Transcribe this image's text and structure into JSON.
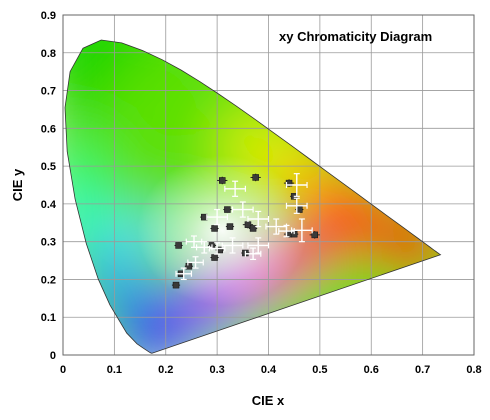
{
  "chart_data": {
    "type": "scatter",
    "title": "xy Chromaticity Diagram",
    "xlabel": "CIE x",
    "ylabel": "CIE y",
    "xlim": [
      0,
      0.8
    ],
    "ylim": [
      0,
      0.9
    ],
    "xticks": [
      "0",
      "0.1",
      "0.2",
      "0.3",
      "0.4",
      "0.5",
      "0.6",
      "0.7",
      "0.8"
    ],
    "yticks": [
      "0",
      "0.1",
      "0.2",
      "0.3",
      "0.4",
      "0.5",
      "0.6",
      "0.7",
      "0.8",
      "0.9"
    ],
    "grid": true,
    "background": "CIE 1931 spectral locus gamut (colored)",
    "spectral_locus": [
      [
        0.1741,
        0.005
      ],
      [
        0.1738,
        0.0049
      ],
      [
        0.1733,
        0.0048
      ],
      [
        0.1726,
        0.0048
      ],
      [
        0.1714,
        0.0051
      ],
      [
        0.1689,
        0.0069
      ],
      [
        0.1644,
        0.0109
      ],
      [
        0.1566,
        0.0177
      ],
      [
        0.144,
        0.0297
      ],
      [
        0.1241,
        0.0578
      ],
      [
        0.0913,
        0.1327
      ],
      [
        0.0687,
        0.2007
      ],
      [
        0.0454,
        0.295
      ],
      [
        0.0235,
        0.4127
      ],
      [
        0.0082,
        0.5384
      ],
      [
        0.0039,
        0.6548
      ],
      [
        0.0139,
        0.7502
      ],
      [
        0.0389,
        0.812
      ],
      [
        0.0743,
        0.8338
      ],
      [
        0.1142,
        0.8262
      ],
      [
        0.1547,
        0.8059
      ],
      [
        0.1929,
        0.7816
      ],
      [
        0.2296,
        0.7543
      ],
      [
        0.2658,
        0.7243
      ],
      [
        0.3016,
        0.6923
      ],
      [
        0.3373,
        0.6589
      ],
      [
        0.3731,
        0.6245
      ],
      [
        0.4087,
        0.5896
      ],
      [
        0.4441,
        0.5547
      ],
      [
        0.4788,
        0.5202
      ],
      [
        0.5125,
        0.4866
      ],
      [
        0.5448,
        0.4544
      ],
      [
        0.5752,
        0.4242
      ],
      [
        0.6029,
        0.3965
      ],
      [
        0.627,
        0.3725
      ],
      [
        0.6482,
        0.3514
      ],
      [
        0.6658,
        0.334
      ],
      [
        0.6801,
        0.3197
      ],
      [
        0.6915,
        0.3083
      ],
      [
        0.7006,
        0.2993
      ],
      [
        0.7079,
        0.292
      ],
      [
        0.714,
        0.2859
      ],
      [
        0.719,
        0.2809
      ],
      [
        0.723,
        0.277
      ],
      [
        0.726,
        0.274
      ],
      [
        0.7283,
        0.2717
      ],
      [
        0.73,
        0.27
      ],
      [
        0.732,
        0.268
      ],
      [
        0.7347,
        0.2653
      ]
    ],
    "series": [
      {
        "marker": "filled-square-dark",
        "points": [
          [
            0.31,
            0.462,
            0.01,
            0.01
          ],
          [
            0.375,
            0.47,
            0.01,
            0.01
          ],
          [
            0.32,
            0.385,
            0.008,
            0.008
          ],
          [
            0.44,
            0.455,
            0.01,
            0.01
          ],
          [
            0.45,
            0.42,
            0.008,
            0.008
          ],
          [
            0.46,
            0.385,
            0.008,
            0.008
          ],
          [
            0.275,
            0.365,
            0.008,
            0.008
          ],
          [
            0.295,
            0.335,
            0.008,
            0.008
          ],
          [
            0.325,
            0.34,
            0.008,
            0.008
          ],
          [
            0.36,
            0.345,
            0.01,
            0.01
          ],
          [
            0.37,
            0.335,
            0.008,
            0.008
          ],
          [
            0.44,
            0.32,
            0.01,
            0.01
          ],
          [
            0.45,
            0.32,
            0.008,
            0.008
          ],
          [
            0.49,
            0.318,
            0.01,
            0.01
          ],
          [
            0.29,
            0.29,
            0.008,
            0.008
          ],
          [
            0.305,
            0.278,
            0.008,
            0.008
          ],
          [
            0.355,
            0.27,
            0.008,
            0.008
          ],
          [
            0.295,
            0.258,
            0.008,
            0.008
          ],
          [
            0.225,
            0.29,
            0.008,
            0.008
          ],
          [
            0.245,
            0.235,
            0.008,
            0.008
          ],
          [
            0.23,
            0.215,
            0.008,
            0.008
          ],
          [
            0.22,
            0.185,
            0.008,
            0.008
          ]
        ]
      },
      {
        "marker": "white-crosshair",
        "points": [
          [
            0.335,
            0.44,
            0.02,
            0.02
          ],
          [
            0.455,
            0.45,
            0.02,
            0.03
          ],
          [
            0.35,
            0.385,
            0.02,
            0.02
          ],
          [
            0.455,
            0.395,
            0.02,
            0.02
          ],
          [
            0.3,
            0.365,
            0.02,
            0.02
          ],
          [
            0.38,
            0.36,
            0.02,
            0.02
          ],
          [
            0.415,
            0.34,
            0.02,
            0.02
          ],
          [
            0.435,
            0.328,
            0.015,
            0.015
          ],
          [
            0.465,
            0.33,
            0.02,
            0.03
          ],
          [
            0.33,
            0.29,
            0.02,
            0.02
          ],
          [
            0.38,
            0.29,
            0.02,
            0.02
          ],
          [
            0.255,
            0.3,
            0.015,
            0.015
          ],
          [
            0.275,
            0.285,
            0.015,
            0.015
          ],
          [
            0.3,
            0.282,
            0.015,
            0.015
          ],
          [
            0.258,
            0.245,
            0.015,
            0.015
          ],
          [
            0.235,
            0.215,
            0.015,
            0.015
          ],
          [
            0.37,
            0.268,
            0.015,
            0.015
          ]
        ]
      }
    ]
  }
}
